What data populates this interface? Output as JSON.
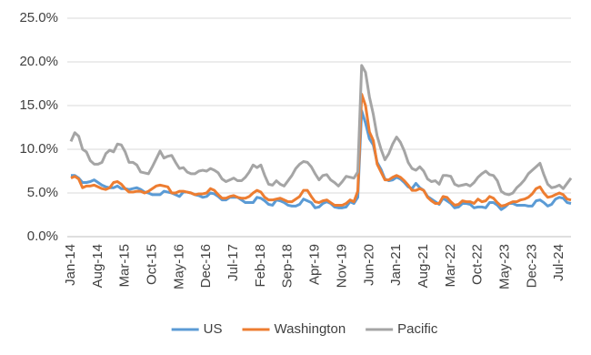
{
  "chart_data": {
    "type": "line",
    "categories": [
      "Jan-14",
      null,
      null,
      null,
      null,
      null,
      null,
      "Aug-14",
      null,
      null,
      null,
      null,
      null,
      null,
      "Mar-15",
      null,
      null,
      null,
      null,
      null,
      null,
      "Oct-15",
      null,
      null,
      null,
      null,
      null,
      null,
      "May-16",
      null,
      null,
      null,
      null,
      null,
      null,
      "Dec-16",
      null,
      null,
      null,
      null,
      null,
      null,
      "Jul-17",
      null,
      null,
      null,
      null,
      null,
      null,
      "Feb-18",
      null,
      null,
      null,
      null,
      null,
      null,
      "Sep-18",
      null,
      null,
      null,
      null,
      null,
      null,
      "Apr-19",
      null,
      null,
      null,
      null,
      null,
      null,
      "Nov-19",
      null,
      null,
      null,
      null,
      null,
      null,
      "Jun-20",
      null,
      null,
      null,
      null,
      null,
      null,
      "Jan-21",
      null,
      null,
      null,
      null,
      null,
      null,
      "Aug-21",
      null,
      null,
      null,
      null,
      null,
      null,
      "Mar-22",
      null,
      null,
      null,
      null,
      null,
      null,
      "Oct-22",
      null,
      null,
      null,
      null,
      null,
      null,
      "May-23",
      null,
      null,
      null,
      null,
      null,
      null,
      "Dec-23",
      null,
      null,
      null,
      null,
      null,
      null,
      "Jul-24",
      null,
      null,
      null
    ],
    "series": [
      {
        "name": "US",
        "color": "#5b9bd5",
        "values": [
          7.0,
          7.0,
          6.7,
          6.2,
          6.2,
          6.3,
          6.5,
          6.2,
          5.9,
          5.7,
          5.6,
          5.6,
          5.8,
          5.5,
          5.5,
          5.4,
          5.5,
          5.6,
          5.4,
          5.1,
          5.0,
          4.8,
          4.8,
          4.8,
          5.2,
          5.1,
          5.0,
          4.8,
          4.6,
          5.1,
          5.1,
          5.0,
          4.8,
          4.7,
          4.5,
          4.6,
          5.0,
          4.9,
          4.6,
          4.2,
          4.2,
          4.5,
          4.5,
          4.5,
          4.2,
          3.9,
          3.9,
          3.9,
          4.5,
          4.4,
          4.1,
          3.7,
          3.6,
          4.2,
          4.1,
          3.9,
          3.6,
          3.5,
          3.5,
          3.7,
          4.3,
          4.1,
          3.9,
          3.3,
          3.4,
          3.8,
          4.0,
          3.8,
          3.4,
          3.3,
          3.3,
          3.4,
          4.0,
          3.8,
          4.5,
          14.4,
          13.0,
          11.2,
          10.5,
          8.5,
          7.7,
          6.6,
          6.4,
          6.5,
          6.8,
          6.6,
          6.2,
          5.7,
          5.5,
          6.1,
          5.6,
          5.3,
          4.6,
          4.3,
          4.0,
          3.7,
          4.4,
          4.1,
          3.8,
          3.3,
          3.4,
          3.8,
          3.8,
          3.7,
          3.3,
          3.4,
          3.4,
          3.3,
          3.9,
          3.9,
          3.6,
          3.1,
          3.4,
          3.8,
          3.8,
          3.6,
          3.6,
          3.6,
          3.5,
          3.5,
          4.1,
          4.2,
          3.9,
          3.5,
          3.7,
          4.3,
          4.5,
          4.4,
          3.9,
          3.8
        ]
      },
      {
        "name": "Washington",
        "color": "#ed7d31",
        "values": [
          6.7,
          6.9,
          6.6,
          5.6,
          5.8,
          5.8,
          5.9,
          5.7,
          5.5,
          5.4,
          5.6,
          6.2,
          6.3,
          6.0,
          5.5,
          5.1,
          5.1,
          5.2,
          5.2,
          5.0,
          5.2,
          5.5,
          5.8,
          5.9,
          5.8,
          5.7,
          5.0,
          5.0,
          5.2,
          5.2,
          5.1,
          5.0,
          4.8,
          4.9,
          4.9,
          5.0,
          5.5,
          5.3,
          4.8,
          4.4,
          4.4,
          4.6,
          4.7,
          4.5,
          4.4,
          4.4,
          4.6,
          5.0,
          5.3,
          5.1,
          4.5,
          4.2,
          4.2,
          4.3,
          4.4,
          4.2,
          4.0,
          4.0,
          4.3,
          4.6,
          5.3,
          5.3,
          4.6,
          4.0,
          3.9,
          4.1,
          4.2,
          3.9,
          3.6,
          3.6,
          3.6,
          3.8,
          4.2,
          4.0,
          5.2,
          16.3,
          15.0,
          12.0,
          11.0,
          8.3,
          7.4,
          6.5,
          6.5,
          6.8,
          7.0,
          6.8,
          6.4,
          5.9,
          5.3,
          5.3,
          5.5,
          5.3,
          4.5,
          4.1,
          3.8,
          3.8,
          4.6,
          4.5,
          4.0,
          3.6,
          3.7,
          4.1,
          4.0,
          4.0,
          3.8,
          4.3,
          4.0,
          4.1,
          4.6,
          4.4,
          3.9,
          3.5,
          3.6,
          3.8,
          4.0,
          4.0,
          4.2,
          4.3,
          4.5,
          4.9,
          5.5,
          5.7,
          5.0,
          4.5,
          4.6,
          4.8,
          5.0,
          4.8,
          4.3,
          4.2
        ]
      },
      {
        "name": "Pacific",
        "color": "#a5a5a5",
        "values": [
          10.9,
          11.9,
          11.5,
          10.0,
          9.7,
          8.7,
          8.3,
          8.3,
          8.5,
          9.5,
          9.9,
          9.7,
          10.6,
          10.5,
          9.7,
          8.5,
          8.5,
          8.2,
          7.4,
          7.3,
          7.2,
          8.0,
          8.9,
          9.8,
          9.0,
          9.2,
          9.3,
          8.5,
          7.8,
          7.9,
          7.4,
          7.2,
          7.2,
          7.5,
          7.6,
          7.5,
          7.8,
          7.6,
          7.3,
          6.6,
          6.3,
          6.5,
          6.7,
          6.4,
          6.4,
          6.8,
          7.4,
          8.2,
          7.9,
          8.2,
          7.0,
          6.0,
          5.9,
          6.4,
          6.0,
          5.8,
          6.4,
          7.0,
          7.8,
          8.3,
          8.6,
          8.5,
          8.0,
          7.2,
          6.5,
          7.0,
          7.1,
          6.5,
          6.2,
          5.8,
          6.3,
          6.9,
          6.8,
          6.7,
          7.4,
          19.6,
          18.8,
          16.0,
          14.0,
          11.5,
          10.0,
          8.8,
          9.5,
          10.6,
          11.4,
          10.8,
          9.8,
          8.5,
          7.8,
          7.6,
          8.0,
          7.5,
          6.6,
          6.3,
          6.4,
          6.0,
          7.0,
          7.0,
          6.9,
          6.0,
          5.8,
          5.9,
          6.0,
          5.8,
          6.2,
          6.8,
          7.2,
          7.5,
          7.1,
          7.0,
          6.4,
          5.2,
          4.9,
          4.8,
          5.0,
          5.6,
          6.0,
          6.5,
          7.2,
          7.6,
          8.0,
          8.4,
          7.1,
          6.0,
          5.6,
          5.7,
          5.9,
          5.5,
          6.1,
          6.7
        ]
      }
    ],
    "ylim": [
      0,
      25
    ],
    "yticks": [
      {
        "value": 0,
        "label": "0.0%"
      },
      {
        "value": 5,
        "label": "5.0%"
      },
      {
        "value": 10,
        "label": "10.0%"
      },
      {
        "value": 15,
        "label": "15.0%"
      },
      {
        "value": 20,
        "label": "20.0%"
      },
      {
        "value": 25,
        "label": "25.0%"
      }
    ],
    "grid": true,
    "legend": "bottom"
  }
}
